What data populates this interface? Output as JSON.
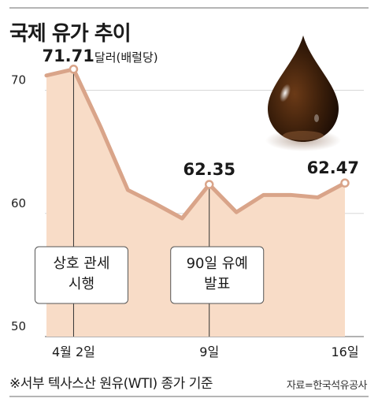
{
  "title": "국제 유가 추이",
  "footnote": "※서부 텍사스산 원유(WTI) 종가 기준",
  "source": "자료=한국석유공사",
  "colors": {
    "line": "#d9a489",
    "area": "#f8dcc7",
    "grid": "#d8d8d8",
    "baseline": "#999999",
    "drop_dark": "#2a1608"
  },
  "chart_data": {
    "type": "area",
    "x_labels": [
      "4월 2일",
      "9일",
      "16일"
    ],
    "y_ticks": [
      50,
      60,
      70
    ],
    "ylim": [
      50,
      74
    ],
    "series": [
      {
        "values": [
          71.2,
          71.71,
          67.0,
          61.9,
          60.8,
          59.6,
          62.35,
          60.1,
          61.5,
          61.5,
          61.3,
          62.47
        ]
      }
    ],
    "point_labels": [
      {
        "index": 1,
        "text": "71.71",
        "unit": "달러(배럴당)"
      },
      {
        "index": 6,
        "text": "62.35"
      },
      {
        "index": 11,
        "text": "62.47"
      }
    ],
    "annotations": [
      {
        "index": 1,
        "lines": [
          "상호 관세",
          "시행"
        ]
      },
      {
        "index": 6,
        "lines": [
          "90일 유예",
          "발표"
        ]
      }
    ]
  }
}
